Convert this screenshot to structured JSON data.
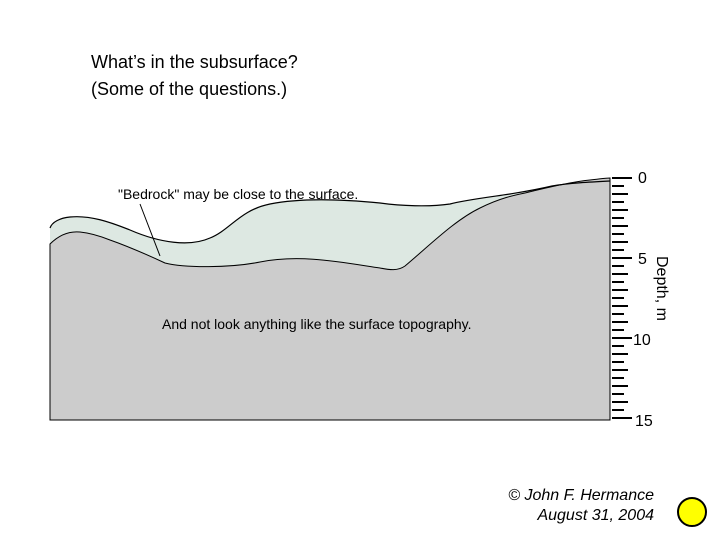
{
  "slide": {
    "title_line1": "What’s in the subsurface?",
    "title_line2": "(Some of the questions.)"
  },
  "diagram": {
    "bedrock_label": "\"Bedrock\" may be close to the surface.",
    "topography_label": "And not look anything like the surface topography.",
    "depth_axis": {
      "label": "Depth, m",
      "ticks": [
        "0",
        "5",
        "10",
        "15"
      ]
    },
    "colors": {
      "bedrock_fill": "#cccccc",
      "sediment_fill": "#dde8e2",
      "outline": "#000000"
    }
  },
  "credit": {
    "author": "© John F. Hermance",
    "date": "August 31, 2004"
  },
  "marker": {
    "color": "#ffff00"
  }
}
